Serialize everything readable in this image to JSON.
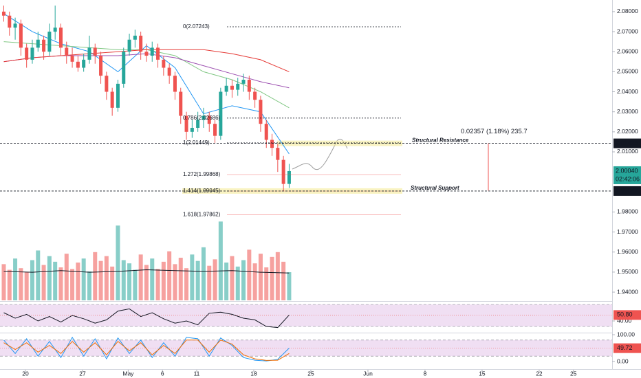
{
  "chart_data": [
    {
      "type": "candlestick",
      "xlim": [
        -2.23,
        51.39
      ],
      "xticks": [
        {
          "value": 0,
          "label": "20"
        },
        {
          "value": 5,
          "label": "27"
        },
        {
          "value": 9,
          "label": "May"
        },
        {
          "value": 12,
          "label": "6"
        },
        {
          "value": 15,
          "label": "11"
        },
        {
          "value": 20,
          "label": "18"
        },
        {
          "value": 25,
          "label": "25"
        },
        {
          "value": 30,
          "label": "Jun"
        },
        {
          "value": 35,
          "label": "8"
        },
        {
          "value": 40,
          "label": "15"
        },
        {
          "value": 45,
          "label": "22"
        },
        {
          "value": 48,
          "label": "25"
        }
      ],
      "ylim": [
        1.9359,
        2.0858
      ],
      "yticks": [
        {
          "value": 2.08,
          "label": "2.08000"
        },
        {
          "value": 2.07,
          "label": "2.07000"
        },
        {
          "value": 2.06,
          "label": "2.06000"
        },
        {
          "value": 2.05,
          "label": "2.05000"
        },
        {
          "value": 2.04,
          "label": "2.04000"
        },
        {
          "value": 2.03,
          "label": "2.03000"
        },
        {
          "value": 2.02,
          "label": "2.02000"
        },
        {
          "value": 2.01,
          "label": "2.01000"
        },
        {
          "value": 1.98,
          "label": "1.98000"
        },
        {
          "value": 1.97,
          "label": "1.97000"
        },
        {
          "value": 1.96,
          "label": "1.96000"
        },
        {
          "value": 1.95,
          "label": "1.95000"
        },
        {
          "value": 1.94,
          "label": "1.94000"
        }
      ],
      "up_color": "#26a69a",
      "down_color": "#ef5350",
      "x": [
        -1.9,
        -1.4,
        -0.9,
        -0.4,
        0.1,
        0.6,
        1.1,
        1.6,
        2.1,
        2.6,
        3.1,
        3.6,
        4.1,
        4.6,
        5.1,
        5.6,
        6.1,
        6.6,
        7.1,
        7.6,
        8.1,
        8.6,
        9.1,
        9.6,
        10.1,
        10.6,
        11.1,
        11.6,
        12.1,
        12.6,
        13.1,
        13.6,
        14.1,
        14.6,
        15.1,
        15.6,
        16.1,
        16.6,
        17.1,
        17.6,
        18.1,
        18.6,
        19.1,
        19.6,
        20.1,
        20.6,
        21.1,
        21.6,
        22.1,
        22.6,
        23.1
      ],
      "open": [
        2.08,
        2.078,
        2.072,
        2.074,
        2.062,
        2.056,
        2.062,
        2.066,
        2.06,
        2.07,
        2.072,
        2.062,
        2.058,
        2.055,
        2.052,
        2.056,
        2.062,
        2.058,
        2.048,
        2.04,
        2.032,
        2.044,
        2.06,
        2.066,
        2.068,
        2.06,
        2.058,
        2.062,
        2.056,
        2.052,
        2.048,
        2.04,
        2.028,
        2.02,
        2.022,
        2.026,
        2.028,
        2.024,
        2.018,
        2.04,
        2.043,
        2.041,
        2.044,
        2.046,
        2.04,
        2.036,
        2.024,
        2.016,
        2.012,
        2.006,
        1.994
      ],
      "high": [
        2.083,
        2.08,
        2.077,
        2.076,
        2.064,
        2.066,
        2.07,
        2.068,
        2.074,
        2.083,
        2.074,
        2.065,
        2.062,
        2.058,
        2.059,
        2.068,
        2.064,
        2.06,
        2.05,
        2.042,
        2.046,
        2.062,
        2.069,
        2.071,
        2.07,
        2.064,
        2.065,
        2.064,
        2.058,
        2.054,
        2.05,
        2.042,
        2.03,
        2.026,
        2.03,
        2.032,
        2.03,
        2.026,
        2.042,
        2.047,
        2.046,
        2.047,
        2.049,
        2.048,
        2.042,
        2.038,
        2.026,
        2.019,
        2.014,
        2.008,
        2.004
      ],
      "low": [
        2.075,
        2.068,
        2.066,
        2.058,
        2.052,
        2.054,
        2.06,
        2.056,
        2.058,
        2.066,
        2.058,
        2.054,
        2.052,
        2.05,
        2.05,
        2.054,
        2.054,
        2.044,
        2.036,
        2.028,
        2.03,
        2.042,
        2.058,
        2.062,
        2.056,
        2.055,
        2.055,
        2.052,
        2.048,
        2.044,
        2.036,
        2.024,
        2.016,
        2.017,
        2.02,
        2.022,
        2.02,
        2.0145,
        2.016,
        2.038,
        2.037,
        2.038,
        2.04,
        2.036,
        2.032,
        2.02,
        2.012,
        2.008,
        2.0,
        1.9905,
        1.992
      ],
      "close": [
        2.078,
        2.072,
        2.074,
        2.062,
        2.056,
        2.062,
        2.066,
        2.06,
        2.07,
        2.072,
        2.062,
        2.058,
        2.055,
        2.052,
        2.056,
        2.062,
        2.058,
        2.048,
        2.04,
        2.032,
        2.044,
        2.06,
        2.066,
        2.068,
        2.06,
        2.058,
        2.062,
        2.056,
        2.052,
        2.048,
        2.04,
        2.028,
        2.02,
        2.022,
        2.026,
        2.028,
        2.024,
        2.018,
        2.04,
        2.043,
        2.041,
        2.044,
        2.046,
        2.04,
        2.036,
        2.024,
        2.016,
        2.012,
        2.006,
        1.994,
        2.0004
      ],
      "volume": {
        "vlim": [
          0,
          100
        ],
        "values": [
          45,
          38,
          52,
          40,
          35,
          50,
          62,
          44,
          55,
          48,
          41,
          58,
          39,
          47,
          52,
          36,
          60,
          49,
          55,
          42,
          93,
          50,
          46,
          38,
          57,
          44,
          52,
          39,
          48,
          61,
          45,
          53,
          40,
          57,
          49,
          66,
          43,
          51,
          98,
          47,
          55,
          42,
          50,
          63,
          46,
          58,
          41,
          54,
          60,
          48,
          35
        ],
        "ma": {
          "color": "#131722",
          "x": [
            -1.9,
            0.6,
            3.1,
            5.6,
            8.1,
            10.6,
            13.1,
            15.6,
            18.1,
            20.6,
            23.1
          ],
          "values": [
            36,
            35,
            37,
            35,
            36,
            38,
            37,
            36,
            37,
            35,
            34
          ]
        }
      },
      "moving_averages": [
        {
          "color": "#2196f3",
          "x": [
            -1.9,
            0.6,
            3.1,
            5.6,
            8.1,
            10.6,
            13.1,
            15.6,
            18.1,
            20.6,
            23.1
          ],
          "values": [
            2.079,
            2.07,
            2.064,
            2.06,
            2.05,
            2.063,
            2.052,
            2.029,
            2.033,
            2.03,
            2.009
          ]
        },
        {
          "color": "#81c784",
          "x": [
            -1.9,
            0.6,
            3.1,
            5.6,
            8.1,
            10.6,
            13.1,
            15.6,
            18.1,
            20.6,
            23.1
          ],
          "values": [
            2.065,
            2.064,
            2.063,
            2.062,
            2.061,
            2.061,
            2.058,
            2.05,
            2.046,
            2.04,
            2.032
          ]
        },
        {
          "color": "#9c4fb0",
          "x": [
            -1.9,
            0.6,
            3.1,
            5.6,
            8.1,
            10.6,
            13.1,
            15.6,
            18.1,
            20.6,
            23.1
          ],
          "values": [
            2.055,
            2.057,
            2.058,
            2.058,
            2.058,
            2.059,
            2.057,
            2.053,
            2.049,
            2.045,
            2.042
          ]
        },
        {
          "color": "#e53935",
          "x": [
            -1.9,
            0.6,
            3.1,
            5.6,
            8.1,
            10.6,
            13.1,
            15.6,
            18.1,
            20.6,
            23.1
          ],
          "values": [
            2.055,
            2.057,
            2.058,
            2.059,
            2.06,
            2.061,
            2.061,
            2.061,
            2.059,
            2.056,
            2.05
          ]
        }
      ],
      "fib_levels": [
        {
          "label": "0(2.07243)",
          "value": 2.07243,
          "color": "#131722"
        },
        {
          "label": "0.786(2.02686)",
          "value": 2.02686,
          "color": "#131722"
        },
        {
          "label": "1(2.01449)",
          "value": 2.01449,
          "color": "#131722"
        },
        {
          "label": "1.272(1.99868)",
          "value": 1.99868,
          "color": "#ef5350"
        },
        {
          "label": "1.414(1.99045)",
          "value": 1.99045,
          "color": "#ef5350"
        },
        {
          "label": "1.618(1.97862)",
          "value": 1.97862,
          "color": "#ef5350"
        }
      ],
      "levels": [
        {
          "name": "Structural Resistance",
          "value": 2.01425,
          "label": "2.01425"
        },
        {
          "name": "Structural Support",
          "value": 1.99047,
          "label": "1.99047"
        }
      ],
      "last_price": {
        "value": 2.0004,
        "label": "2.00040",
        "countdown": "02:42:06"
      },
      "measure": {
        "label": "0.02357 (1.18%) 235.7",
        "range": [
          1.99068,
          2.01425
        ]
      }
    },
    {
      "type": "line",
      "ylim": [
        20,
        73.75
      ],
      "yticks": [
        {
          "value": 40,
          "label": "40.00"
        }
      ],
      "band": [
        30,
        70
      ],
      "current": {
        "value": 50.8,
        "label": "50.80"
      },
      "color": "#131722",
      "x": [
        -1.9,
        -0.9,
        0.1,
        1.1,
        2.1,
        3.1,
        4.1,
        5.1,
        6.1,
        7.1,
        8.1,
        9.1,
        10.1,
        11.1,
        12.1,
        13.1,
        14.1,
        15.1,
        16.1,
        17.1,
        18.1,
        19.1,
        20.1,
        21.1,
        22.1,
        23.1
      ],
      "values": [
        55,
        45,
        52,
        40,
        48,
        38,
        50,
        44,
        36,
        42,
        58,
        62,
        48,
        55,
        44,
        36,
        40,
        33,
        54,
        56,
        52,
        45,
        42,
        30,
        28,
        50.8
      ]
    },
    {
      "type": "line",
      "ylim": [
        -28.2,
        102.6
      ],
      "yticks": [
        {
          "value": 100,
          "label": "100.00"
        },
        {
          "value": 0,
          "label": "0.00"
        }
      ],
      "band": [
        20,
        80
      ],
      "current": {
        "value": 49.72,
        "label": "49.72"
      },
      "x": [
        -1.9,
        -0.9,
        0.1,
        1.1,
        2.1,
        3.1,
        4.1,
        5.1,
        6.1,
        7.1,
        8.1,
        9.1,
        10.1,
        11.1,
        12.1,
        13.1,
        14.1,
        15.1,
        16.1,
        17.1,
        18.1,
        19.1,
        20.1,
        21.1,
        22.1,
        23.1
      ],
      "series": [
        {
          "color": "#2196f3",
          "values": [
            80,
            30,
            85,
            20,
            75,
            15,
            90,
            20,
            85,
            10,
            88,
            30,
            80,
            15,
            70,
            20,
            90,
            85,
            20,
            88,
            60,
            15,
            5,
            2,
            8,
            49.72
          ]
        },
        {
          "color": "#ef6c00",
          "values": [
            70,
            45,
            70,
            35,
            60,
            30,
            75,
            35,
            70,
            25,
            75,
            40,
            70,
            25,
            60,
            30,
            80,
            80,
            35,
            80,
            65,
            25,
            10,
            4,
            5,
            30
          ]
        }
      ]
    }
  ]
}
